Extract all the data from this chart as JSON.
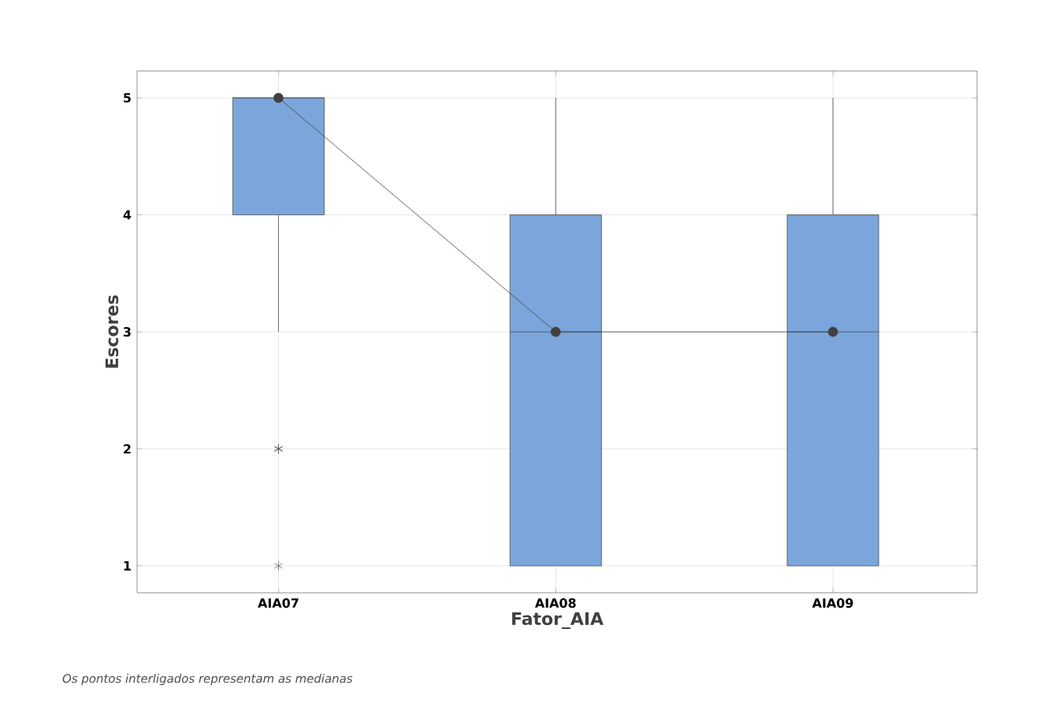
{
  "chart_data": {
    "type": "box",
    "xlabel": "Fator_AIA",
    "ylabel": "Escores",
    "categories": [
      "AIA07",
      "AIA08",
      "AIA09"
    ],
    "series": [
      {
        "type": "box",
        "color": "#7aa6db",
        "boxes": [
          {
            "low": 3,
            "q1": 4,
            "median": 5,
            "q3": 5,
            "high": 5,
            "outliers": [
              2,
              2,
              2,
              1
            ]
          },
          {
            "low": 1,
            "q1": 1,
            "median": 3,
            "q3": 4,
            "high": 5
          },
          {
            "low": 1,
            "q1": 1,
            "median": 3,
            "q3": 4,
            "high": 5
          }
        ]
      },
      {
        "type": "line",
        "color": "#404040",
        "values": [
          5,
          3,
          3
        ]
      }
    ],
    "marker": "circle",
    "ylim": [
      0.77,
      5.23
    ],
    "yticks": [
      1,
      2,
      3,
      4,
      5
    ],
    "grid": true,
    "annotations": [
      "Os pontos interligados representam as medianas"
    ]
  }
}
